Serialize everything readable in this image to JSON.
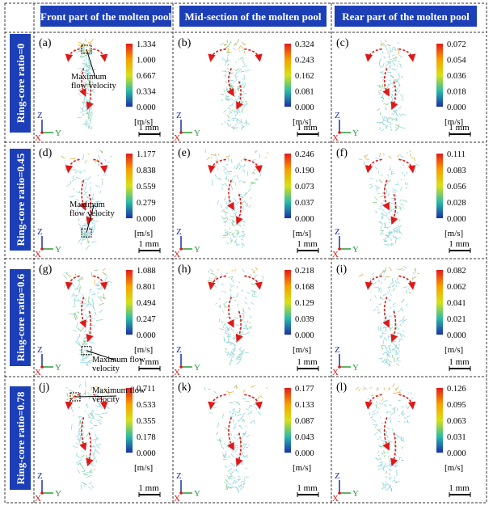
{
  "columns": [
    "Front part of the molten pool",
    "Mid-section of the molten pool",
    "Rear part of the molten pool"
  ],
  "rows": [
    "Ring-core ratio=0",
    "Ring-core ratio=0.45",
    "Ring-core ratio=0.6",
    "Ring-core ratio=0.78"
  ],
  "panels": [
    {
      "label": "(a)",
      "ticks": [
        "1.334",
        "1.000",
        "0.667",
        "0.334",
        "0.000"
      ],
      "annotation": [
        "Maximum",
        "flow velocity"
      ]
    },
    {
      "label": "(b)",
      "ticks": [
        "0.324",
        "0.243",
        "0.162",
        "0.081",
        "0.000"
      ]
    },
    {
      "label": "(c)",
      "ticks": [
        "0.072",
        "0.054",
        "0.036",
        "0.018",
        "0.000"
      ]
    },
    {
      "label": "(d)",
      "ticks": [
        "1.177",
        "0.838",
        "0.559",
        "0.279",
        "0.000"
      ],
      "annotation": [
        "Maximum",
        "flow velocity"
      ]
    },
    {
      "label": "(e)",
      "ticks": [
        "0.246",
        "0.190",
        "0.073",
        "0.037",
        "0.000"
      ]
    },
    {
      "label": "(f)",
      "ticks": [
        "0.111",
        "0.083",
        "0.056",
        "0.028",
        "0.000"
      ]
    },
    {
      "label": "(g)",
      "ticks": [
        "1.088",
        "0.801",
        "0.494",
        "0.247",
        "0.000"
      ],
      "annotation": [
        "Maximum flow",
        "velocity"
      ]
    },
    {
      "label": "(h)",
      "ticks": [
        "0.218",
        "0.168",
        "0.129",
        "0.039",
        "0.000"
      ]
    },
    {
      "label": "(i)",
      "ticks": [
        "0.082",
        "0.062",
        "0.041",
        "0.021",
        "0.000"
      ]
    },
    {
      "label": "(j)",
      "ticks": [
        "0.711",
        "0.533",
        "0.355",
        "0.178",
        "0.000"
      ],
      "annotation": [
        "Maximum flow",
        "velocity"
      ]
    },
    {
      "label": "(k)",
      "ticks": [
        "0.177",
        "0.133",
        "0.087",
        "0.043",
        "0.000"
      ]
    },
    {
      "label": "(l)",
      "ticks": [
        "0.126",
        "0.095",
        "0.063",
        "0.031",
        "0.000"
      ]
    }
  ],
  "unit_label": "[m/s]",
  "scale_label": "1 mm",
  "axes": {
    "z": "Z",
    "x": "X",
    "y": "Y"
  },
  "colors": {
    "header_bg": "#1c3fb7",
    "header_text": "#ffffff",
    "flow_arrow": "#e01818",
    "vector": "#7fd0d8"
  }
}
